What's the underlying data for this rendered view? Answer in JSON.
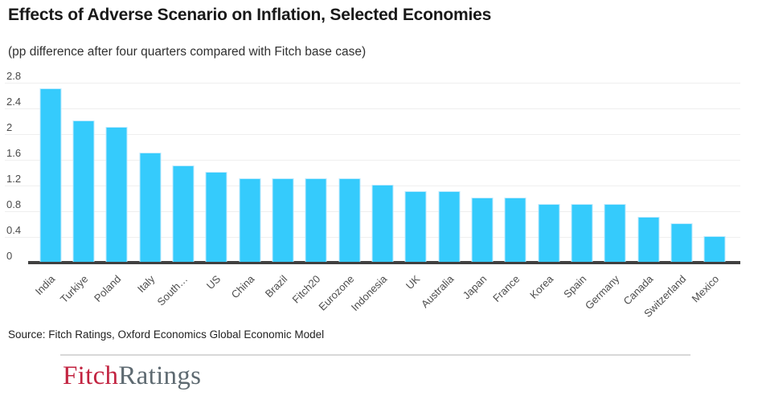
{
  "chart_data": {
    "type": "bar",
    "title": "Effects of Adverse Scenario on Inflation, Selected Economies",
    "subtitle": "(pp difference after four quarters compared with Fitch base case)",
    "categories": [
      "India",
      "Turkiye",
      "Poland",
      "Italy",
      "South…",
      "US",
      "China",
      "Brazil",
      "Fitch20",
      "Eurozone",
      "Indonesia",
      "UK",
      "Australia",
      "Japan",
      "France",
      "Korea",
      "Spain",
      "Germany",
      "Canada",
      "Switzerland",
      "Mexico"
    ],
    "values": [
      2.7,
      2.2,
      2.1,
      1.7,
      1.5,
      1.4,
      1.3,
      1.3,
      1.3,
      1.3,
      1.2,
      1.1,
      1.1,
      1.0,
      1.0,
      0.9,
      0.9,
      0.9,
      0.7,
      0.6,
      0.4
    ],
    "xlabel": "",
    "ylabel": "",
    "yticks": [
      "0",
      "0.4",
      "0.8",
      "1.2",
      "1.6",
      "2",
      "2.4",
      "2.8"
    ],
    "ylim": [
      0,
      2.8
    ],
    "grid": true,
    "legend": false,
    "bar_color": "#35cbfc",
    "bar_border_color": "#bfeafd",
    "gridline_color": "#efefef",
    "axis_line_color": "#404040",
    "tick_label_color": "#4a4a4a"
  },
  "footer": {
    "source": "Source: Fitch Ratings, Oxford Economics Global Economic Model",
    "logo": {
      "part1": "Fitch",
      "part2": "Ratings",
      "color1": "#c22340",
      "color2": "#5e6a71"
    }
  }
}
